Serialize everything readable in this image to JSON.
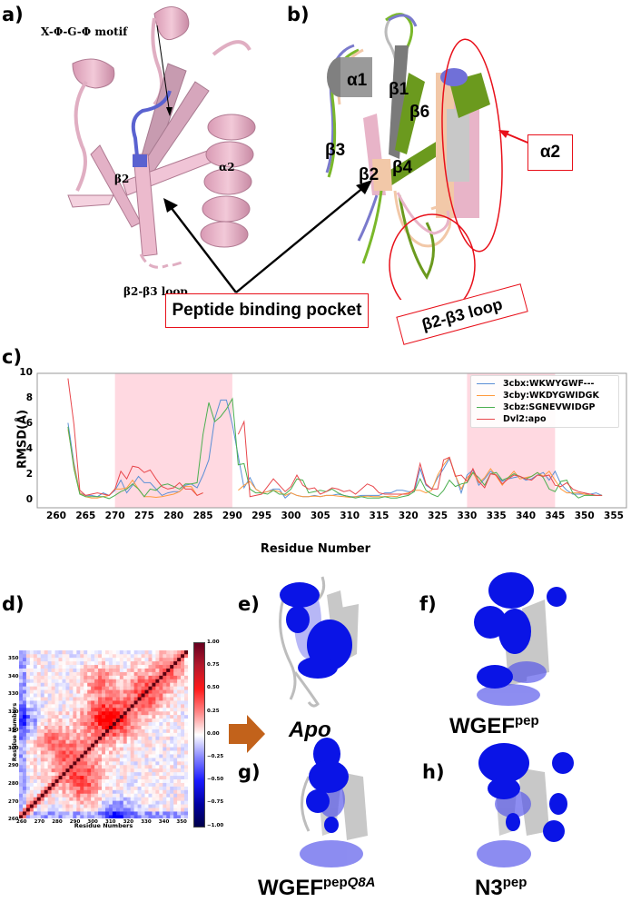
{
  "figure": {
    "panels": {
      "a": {
        "label": "a)",
        "annotations": {
          "motif": "X-Φ-G-Φ motif",
          "beta2": "β2",
          "alpha2": "α2",
          "loop": "β2-β3 loop"
        }
      },
      "b": {
        "label": "b)",
        "structure_labels": [
          "α1",
          "β1",
          "β6",
          "β3",
          "β2",
          "β4"
        ],
        "callouts": {
          "alpha2": "α2",
          "loop": "β2-β3 loop"
        }
      },
      "shared": {
        "pocket_callout": "Peptide binding pocket"
      },
      "c": {
        "label": "c)"
      },
      "d": {
        "label": "d)",
        "xlabel": "Residue Numbers",
        "ylabel": "Residue Numbers",
        "x_ticks": [
          "260",
          "270",
          "280",
          "290",
          "300",
          "310",
          "320",
          "330",
          "340",
          "350"
        ],
        "y_ticks": [
          "350",
          "340",
          "330",
          "320",
          "310",
          "300",
          "290",
          "280",
          "270",
          "260"
        ],
        "colorbar_ticks": [
          "1.00",
          "0.75",
          "0.50",
          "0.25",
          "0.00",
          "−0.25",
          "−0.50",
          "−0.75",
          "−1.00"
        ]
      },
      "e": {
        "label": "e)",
        "caption": "Apo"
      },
      "f": {
        "label": "f)",
        "caption_main": "WGEF",
        "caption_sup": "pep"
      },
      "g": {
        "label": "g)",
        "caption_main": "WGEF",
        "caption_sup": "pep",
        "caption_sup_italic": "Q8A"
      },
      "h": {
        "label": "h)",
        "caption_main": "N3",
        "caption_sup": "pep"
      }
    },
    "colors": {
      "cartoon_pink": "#e8b4c8",
      "motif_blue": "#5a62d0",
      "callout_red": "#e8101a",
      "highlight_band": "#ffd9e1",
      "arrow_orange": "#c2621b",
      "surface_blue": "#0a14e6",
      "cartoon_grey": "#c4c4c4"
    }
  },
  "chart_data": [
    {
      "type": "line",
      "title": "",
      "xlabel": "Residue Number",
      "ylabel": "RMSD(Å)",
      "xlim": [
        258,
        357
      ],
      "ylim": [
        -0.5,
        10
      ],
      "x_ticks": [
        260,
        265,
        270,
        275,
        280,
        285,
        290,
        295,
        300,
        305,
        310,
        315,
        320,
        325,
        330,
        335,
        340,
        345,
        350,
        355
      ],
      "y_ticks": [
        0,
        2,
        4,
        6,
        8,
        10
      ],
      "grid": false,
      "legend_position": "upper right",
      "highlight_bands": [
        [
          270,
          290
        ],
        [
          330,
          345
        ]
      ],
      "series": [
        {
          "name": "3cbx:WKWYGWF---",
          "color": "#5b8fd6",
          "x": [
            262,
            263,
            264,
            265,
            266,
            267,
            268,
            269,
            270,
            271,
            272,
            273,
            274,
            275,
            276,
            277,
            278,
            279,
            280,
            281,
            282,
            283,
            284,
            285,
            286,
            287,
            288,
            289,
            290,
            291,
            292,
            293,
            294,
            295,
            296,
            297,
            298,
            299,
            300,
            301,
            302,
            303,
            304,
            305,
            306,
            307,
            308,
            309,
            310,
            311,
            312,
            313,
            314,
            315,
            316,
            317,
            318,
            319,
            320,
            321,
            322,
            323,
            324,
            325,
            326,
            327,
            328,
            329,
            330,
            331,
            332,
            333,
            334,
            335,
            336,
            337,
            338,
            339,
            340,
            341,
            342,
            343,
            344,
            345,
            346,
            347,
            348,
            349,
            350,
            351,
            352,
            353
          ],
          "values": [
            6.1,
            3.0,
            0.6,
            0.4,
            0.4,
            0.3,
            0.6,
            0.4,
            0.8,
            1.6,
            0.6,
            1.2,
            1.9,
            1.4,
            1.4,
            0.9,
            0.4,
            0.6,
            0.7,
            0.7,
            1.2,
            1.3,
            1.0,
            2.0,
            3.2,
            6.4,
            7.9,
            7.9,
            6.0,
            3.5,
            1.0,
            1.8,
            0.9,
            0.6,
            0.7,
            0.9,
            0.9,
            0.2,
            0.6,
            0.4,
            0.3,
            0.3,
            0.4,
            0.3,
            0.4,
            0.4,
            0.5,
            0.4,
            0.3,
            0.3,
            0.4,
            0.4,
            0.4,
            0.4,
            0.6,
            0.6,
            0.8,
            0.8,
            0.7,
            0.7,
            2.5,
            1.2,
            0.9,
            1.8,
            2.5,
            3.3,
            2.0,
            0.6,
            2.0,
            2.4,
            1.2,
            1.7,
            2.3,
            2.0,
            1.5,
            1.7,
            1.8,
            1.9,
            1.6,
            1.7,
            2.0,
            2.2,
            1.6,
            2.3,
            1.3,
            0.8,
            0.5,
            0.5,
            0.5,
            0.5,
            0.6,
            0.4
          ]
        },
        {
          "name": "3cby:WKDYGWIDGK",
          "color": "#ff9a3d",
          "x": [
            262,
            263,
            264,
            265,
            266,
            267,
            268,
            269,
            270,
            271,
            272,
            273,
            274,
            275,
            276,
            277,
            278,
            279,
            280,
            281,
            282,
            283,
            284,
            285,
            291,
            292,
            293,
            294,
            295,
            296,
            297,
            298,
            299,
            300,
            301,
            302,
            303,
            304,
            305,
            306,
            307,
            308,
            309,
            310,
            311,
            312,
            313,
            314,
            315,
            316,
            317,
            318,
            319,
            320,
            321,
            322,
            323,
            324,
            325,
            326,
            327,
            328,
            329,
            330,
            331,
            332,
            333,
            334,
            335,
            336,
            337,
            338,
            339,
            340,
            341,
            342,
            343,
            344,
            345,
            346,
            347,
            348,
            349,
            350,
            351,
            352,
            353
          ],
          "values": [
            5.6,
            2.8,
            0.6,
            0.3,
            0.2,
            0.2,
            0.3,
            0.4,
            0.9,
            0.9,
            1.0,
            1.6,
            0.9,
            0.3,
            0.3,
            0.25,
            0.3,
            0.4,
            0.5,
            0.7,
            1.1,
            1.1,
            0.4,
            0.6,
            0.8,
            1.2,
            1.5,
            0.9,
            0.6,
            0.7,
            0.8,
            0.7,
            0.4,
            0.6,
            0.4,
            0.3,
            0.3,
            0.35,
            0.3,
            0.4,
            0.4,
            0.35,
            0.3,
            0.25,
            0.3,
            0.3,
            0.35,
            0.3,
            0.3,
            0.3,
            0.35,
            0.3,
            0.5,
            0.6,
            0.8,
            0.8,
            0.6,
            0.8,
            2.0,
            2.8,
            3.4,
            2.0,
            0.9,
            1.8,
            2.2,
            1.4,
            1.8,
            2.5,
            1.9,
            1.2,
            1.8,
            2.3,
            1.7,
            1.8,
            1.9,
            2.2,
            1.9,
            2.3,
            1.6,
            0.9,
            0.6,
            0.6,
            0.6,
            0.5,
            0.4,
            0.4,
            0.4
          ]
        },
        {
          "name": "3cbz:SGNEVWIDGP",
          "color": "#4caf50",
          "x": [
            262,
            263,
            264,
            265,
            266,
            267,
            268,
            269,
            270,
            271,
            272,
            273,
            274,
            275,
            276,
            277,
            278,
            279,
            280,
            281,
            282,
            283,
            284,
            285,
            286,
            287,
            288,
            289,
            290,
            291,
            292,
            293,
            294,
            295,
            296,
            297,
            298,
            299,
            300,
            301,
            302,
            303,
            304,
            305,
            306,
            307,
            308,
            309,
            310,
            311,
            312,
            313,
            314,
            315,
            316,
            317,
            318,
            319,
            320,
            321,
            322,
            323,
            324,
            325,
            326,
            327,
            328,
            329,
            330,
            331,
            332,
            333,
            334,
            335,
            336,
            337,
            338,
            339,
            340,
            341,
            342,
            343,
            344,
            345,
            346,
            347,
            348,
            349,
            350,
            351,
            352,
            353
          ],
          "values": [
            5.8,
            2.5,
            0.5,
            0.3,
            0.3,
            0.3,
            0.3,
            0.15,
            0.4,
            0.7,
            0.9,
            1.3,
            0.9,
            0.3,
            0.9,
            0.8,
            1.2,
            1.3,
            1.1,
            0.9,
            1.3,
            1.3,
            1.4,
            5.2,
            7.7,
            6.2,
            6.6,
            7.2,
            8.0,
            2.8,
            2.9,
            0.9,
            0.6,
            0.6,
            0.5,
            0.8,
            0.5,
            0.5,
            0.9,
            1.7,
            1.6,
            0.6,
            0.7,
            0.8,
            0.7,
            0.9,
            0.6,
            0.4,
            0.3,
            0.2,
            0.3,
            0.2,
            0.2,
            0.2,
            0.3,
            0.2,
            0.2,
            0.3,
            0.4,
            0.7,
            1.7,
            0.8,
            0.5,
            0.3,
            0.8,
            1.6,
            1.1,
            1.3,
            1.4,
            2.2,
            1.8,
            1.2,
            2.1,
            2.2,
            1.6,
            1.8,
            2.1,
            1.9,
            1.7,
            1.9,
            2.2,
            1.8,
            0.9,
            0.7,
            1.5,
            1.6,
            0.6,
            0.2,
            0.4,
            0.4,
            0.4,
            0.4
          ]
        },
        {
          "name": "Dvl2:apo",
          "color": "#e8474c",
          "x": [
            262,
            263,
            264,
            265,
            266,
            267,
            268,
            269,
            270,
            271,
            272,
            273,
            274,
            275,
            276,
            277,
            278,
            279,
            280,
            281,
            282,
            283,
            284,
            285,
            291,
            292,
            293,
            294,
            295,
            296,
            297,
            298,
            299,
            300,
            301,
            302,
            303,
            304,
            305,
            306,
            307,
            308,
            309,
            310,
            311,
            312,
            313,
            314,
            315,
            316,
            317,
            318,
            319,
            320,
            321,
            322,
            323,
            324,
            325,
            326,
            327,
            328,
            329,
            330,
            331,
            332,
            333,
            334,
            335,
            336,
            337,
            338,
            339,
            340,
            341,
            342,
            343,
            344,
            345,
            346,
            347,
            348,
            349,
            350,
            351,
            352,
            353
          ],
          "values": [
            9.6,
            6.0,
            0.8,
            0.4,
            0.5,
            0.6,
            0.5,
            0.4,
            0.9,
            2.3,
            1.7,
            2.7,
            2.6,
            2.2,
            2.4,
            1.7,
            1.1,
            0.9,
            1.0,
            1.4,
            0.9,
            0.9,
            0.4,
            0.6,
            5.2,
            6.2,
            0.3,
            0.4,
            0.5,
            1.1,
            1.7,
            1.2,
            0.7,
            1.1,
            2.0,
            1.2,
            0.9,
            1.0,
            0.5,
            0.7,
            1.0,
            0.9,
            0.7,
            0.8,
            0.5,
            0.9,
            1.3,
            1.1,
            0.6,
            0.5,
            0.5,
            0.5,
            0.5,
            0.5,
            0.9,
            2.9,
            1.3,
            0.9,
            0.9,
            3.2,
            3.4,
            1.9,
            2.0,
            1.5,
            2.5,
            1.5,
            1.0,
            2.1,
            2.0,
            1.3,
            1.7,
            2.0,
            1.9,
            1.7,
            1.6,
            2.0,
            1.9,
            2.0,
            1.2,
            1.1,
            1.4,
            0.9,
            0.7,
            0.6,
            0.5,
            0.4,
            0.4
          ]
        }
      ]
    },
    {
      "type": "heatmap",
      "title": "",
      "xlabel": "Residue Numbers",
      "ylabel": "Residue Numbers",
      "x_range": [
        260,
        353
      ],
      "y_range": [
        260,
        353
      ],
      "colorbar_range": [
        -1.0,
        1.0
      ],
      "colormap": "seismic (blue-white-red)",
      "note": "Dynamic cross-correlation matrix; diagonal = 1.00; strong positive blocks near 290, 310, 330; negative region near residue 260-265 and 310-315 columns"
    }
  ]
}
